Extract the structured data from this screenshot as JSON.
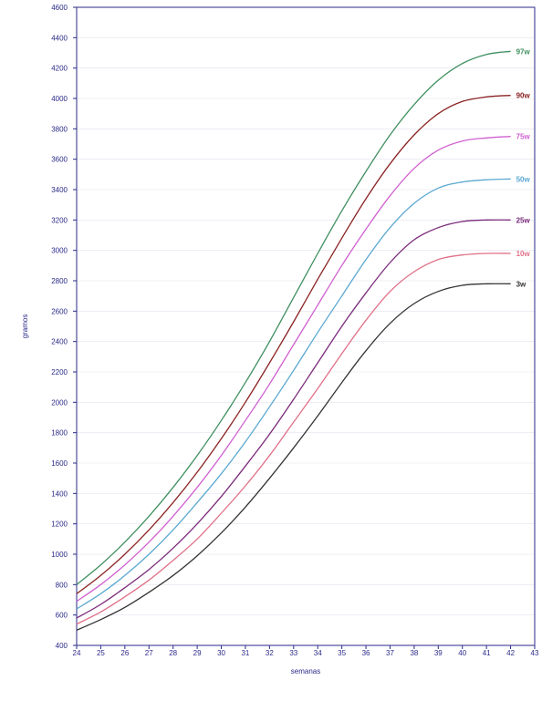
{
  "chart_data": {
    "type": "line",
    "xlabel": "semanas",
    "ylabel": "gramos",
    "xlim": [
      24,
      43
    ],
    "ylim": [
      400,
      4600
    ],
    "x_ticks": [
      "24",
      "25",
      "26",
      "27",
      "28",
      "29",
      "30",
      "31",
      "32",
      "33",
      "34",
      "35",
      "36",
      "37",
      "38",
      "39",
      "40",
      "41",
      "42",
      "43"
    ],
    "y_ticks": [
      "400",
      "600",
      "800",
      "1000",
      "1200",
      "1400",
      "1600",
      "1800",
      "2000",
      "2200",
      "2400",
      "2600",
      "2800",
      "3000",
      "3200",
      "3400",
      "3600",
      "3800",
      "4000",
      "4200",
      "4400",
      "4600"
    ],
    "grid": "horizontal",
    "x": [
      24,
      25,
      26,
      27,
      28,
      29,
      30,
      31,
      32,
      33,
      34,
      35,
      36,
      37,
      38,
      39,
      40,
      41,
      42
    ],
    "series": [
      {
        "name": "97th",
        "color": "#3f8f5f",
        "values": [
          800,
          930,
          1080,
          1250,
          1440,
          1650,
          1880,
          2130,
          2400,
          2690,
          2980,
          3260,
          3520,
          3760,
          3960,
          4120,
          4230,
          4290,
          4310
        ]
      },
      {
        "name": "90th",
        "color": "#8b2323",
        "values": [
          740,
          860,
          1000,
          1160,
          1340,
          1540,
          1760,
          2000,
          2260,
          2530,
          2810,
          3080,
          3340,
          3570,
          3760,
          3900,
          3980,
          4010,
          4020
        ]
      },
      {
        "name": "75th",
        "color": "#d060d0",
        "values": [
          690,
          800,
          930,
          1080,
          1250,
          1440,
          1650,
          1880,
          2120,
          2380,
          2640,
          2900,
          3140,
          3360,
          3540,
          3660,
          3720,
          3740,
          3750
        ]
      },
      {
        "name": "50th",
        "color": "#5aa8d0",
        "values": [
          640,
          740,
          860,
          1000,
          1160,
          1340,
          1530,
          1740,
          1970,
          2210,
          2460,
          2700,
          2940,
          3150,
          3310,
          3410,
          3450,
          3465,
          3470
        ]
      },
      {
        "name": "25th",
        "color": "#7a2a7a",
        "values": [
          580,
          670,
          780,
          900,
          1040,
          1200,
          1380,
          1580,
          1790,
          2020,
          2260,
          2500,
          2720,
          2920,
          3070,
          3150,
          3190,
          3200,
          3200
        ]
      },
      {
        "name": "10th",
        "color": "#e07088",
        "values": [
          540,
          620,
          720,
          830,
          960,
          1100,
          1270,
          1450,
          1650,
          1870,
          2090,
          2320,
          2540,
          2730,
          2860,
          2940,
          2970,
          2980,
          2980
        ]
      },
      {
        "name": "3rd",
        "color": "#333333",
        "values": [
          500,
          570,
          650,
          750,
          860,
          990,
          1140,
          1310,
          1500,
          1700,
          1910,
          2130,
          2340,
          2520,
          2650,
          2730,
          2770,
          2780,
          2780
        ]
      }
    ],
    "series_labels": [
      "97w",
      "90w",
      "75w",
      "50w",
      "25w",
      "10w",
      "3w"
    ]
  }
}
